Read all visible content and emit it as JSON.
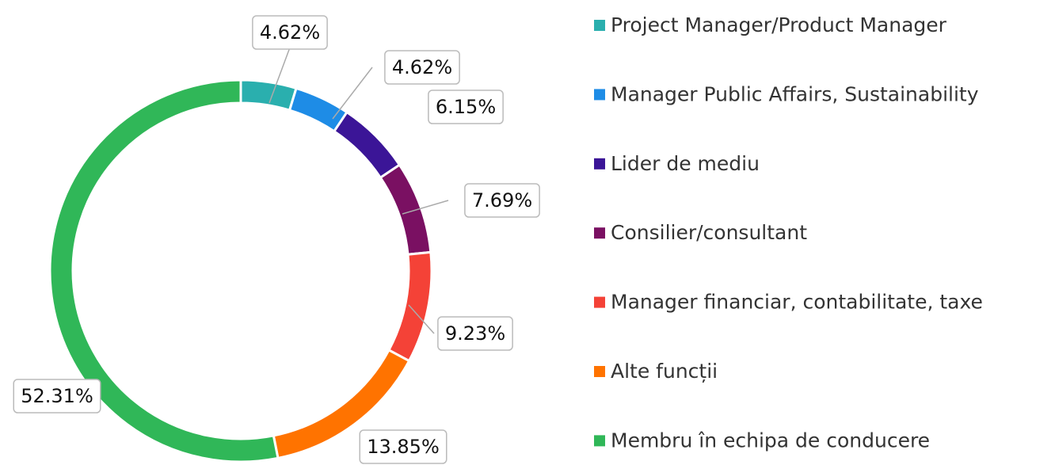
{
  "chart_data": {
    "type": "donut",
    "categories": [
      "Project Manager/Product Manager",
      "Manager Public Affairs, Sustainability",
      "Lider de mediu",
      "Consilier/consultant",
      "Manager financiar, contabilitate, taxe",
      "Alte funcții",
      "Membru în echipa de conducere"
    ],
    "values": [
      4.62,
      4.62,
      6.15,
      7.69,
      9.23,
      13.85,
      52.31
    ],
    "value_labels": [
      "4.62%",
      "4.62%",
      "6.15%",
      "7.69%",
      "9.23%",
      "13.85%",
      "52.31%"
    ],
    "colors": [
      "#2aafae",
      "#1e8ce6",
      "#3b1597",
      "#7a1062",
      "#f44237",
      "#ff7300",
      "#30b758"
    ],
    "legend": "right"
  }
}
